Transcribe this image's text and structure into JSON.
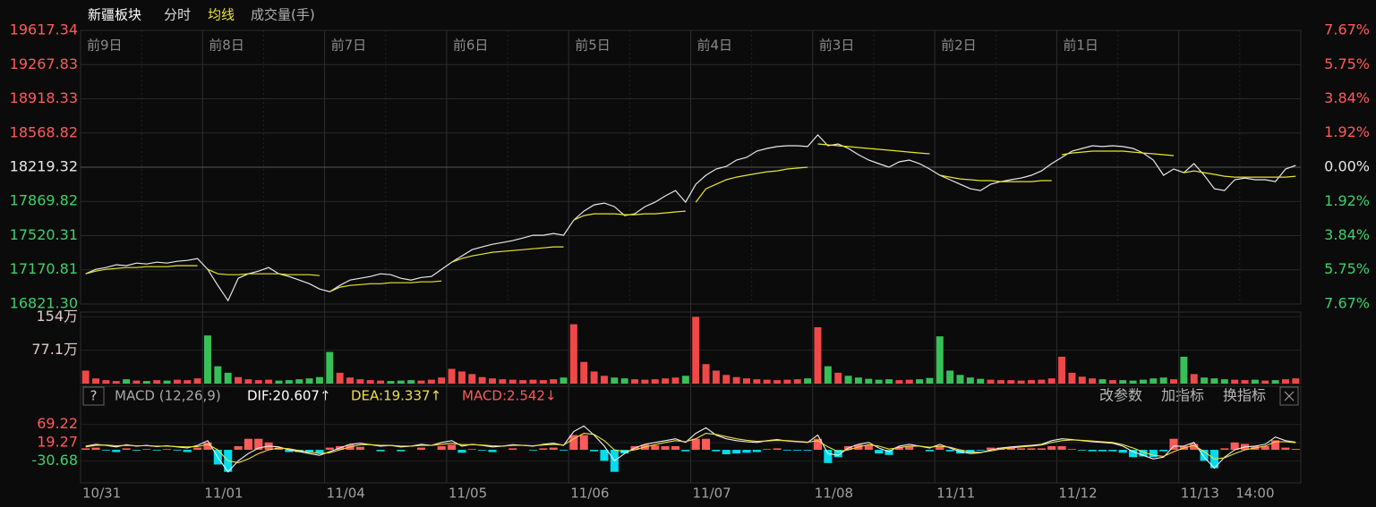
{
  "chart_data": [
    {
      "type": "line",
      "title": "新疆板块",
      "categories": [
        "10/31",
        null,
        null,
        null,
        null,
        null,
        null,
        null,
        null,
        null,
        null,
        null,
        "11/01",
        null,
        null,
        null,
        null,
        null,
        null,
        null,
        null,
        null,
        null,
        null,
        "11/04",
        null,
        null,
        null,
        null,
        null,
        null,
        null,
        null,
        null,
        null,
        null,
        "11/05",
        null,
        null,
        null,
        null,
        null,
        null,
        null,
        null,
        null,
        null,
        null,
        "11/06",
        null,
        null,
        null,
        null,
        null,
        null,
        null,
        null,
        null,
        null,
        null,
        "11/07",
        null,
        null,
        null,
        null,
        null,
        null,
        null,
        null,
        null,
        null,
        null,
        "11/08",
        null,
        null,
        null,
        null,
        null,
        null,
        null,
        null,
        null,
        null,
        null,
        "11/11",
        null,
        null,
        null,
        null,
        null,
        null,
        null,
        null,
        null,
        null,
        null,
        "11/12",
        null,
        null,
        null,
        null,
        null,
        null,
        null,
        null,
        null,
        null,
        null,
        "11/13",
        null,
        null,
        null,
        null,
        null,
        null,
        "14:00",
        null,
        null,
        null,
        null
      ],
      "day_labels": [
        "前9日",
        "前8日",
        "前7日",
        "前6日",
        "前5日",
        "前4日",
        "前3日",
        "前2日",
        "前1日"
      ],
      "series": [
        {
          "name": "分时",
          "color": "#e8e8e8",
          "values": [
            17130,
            17176,
            17194,
            17222,
            17213,
            17240,
            17231,
            17249,
            17240,
            17258,
            17267,
            17286,
            17176,
            17011,
            16856,
            17084,
            17130,
            17158,
            17194,
            17130,
            17103,
            17066,
            17029,
            16975,
            16947,
            17011,
            17066,
            17084,
            17103,
            17130,
            17121,
            17084,
            17066,
            17093,
            17103,
            17176,
            17249,
            17313,
            17377,
            17405,
            17432,
            17450,
            17469,
            17496,
            17524,
            17524,
            17542,
            17524,
            17679,
            17771,
            17835,
            17853,
            17816,
            17725,
            17743,
            17816,
            17862,
            17926,
            17981,
            17862,
            18045,
            18137,
            18201,
            18228,
            18292,
            18320,
            18384,
            18411,
            18430,
            18439,
            18439,
            18430,
            18549,
            18439,
            18457,
            18411,
            18347,
            18292,
            18256,
            18219,
            18274,
            18292,
            18256,
            18201,
            18137,
            18091,
            18045,
            17999,
            17981,
            18045,
            18072,
            18091,
            18109,
            18137,
            18182,
            18256,
            18320,
            18384,
            18411,
            18439,
            18430,
            18439,
            18430,
            18411,
            18365,
            18292,
            18137,
            18201,
            18164,
            18256,
            18137,
            17999,
            17981,
            18091,
            18109,
            18091,
            18091,
            18072,
            18201,
            18238
          ]
        },
        {
          "name": "均线",
          "color": "#e6e62e",
          "values": [
            17130,
            17158,
            17176,
            17185,
            17194,
            17194,
            17203,
            17203,
            17203,
            17213,
            17213,
            17213,
            17176,
            17130,
            17121,
            17121,
            17130,
            17130,
            17130,
            17130,
            17121,
            17121,
            17121,
            17112,
            16947,
            16993,
            17011,
            17020,
            17029,
            17029,
            17039,
            17039,
            17039,
            17048,
            17048,
            17057,
            17249,
            17286,
            17313,
            17331,
            17350,
            17359,
            17368,
            17377,
            17386,
            17395,
            17405,
            17405,
            17679,
            17725,
            17743,
            17743,
            17743,
            17734,
            17734,
            17743,
            17743,
            17752,
            17762,
            17771,
            17862,
            17999,
            18045,
            18091,
            18118,
            18137,
            18155,
            18173,
            18182,
            18201,
            18210,
            18219,
            18457,
            18448,
            18439,
            18430,
            18420,
            18411,
            18402,
            18393,
            18384,
            18374,
            18365,
            18356,
            18137,
            18118,
            18100,
            18091,
            18082,
            18082,
            18072,
            18072,
            18072,
            18072,
            18082,
            18082,
            18347,
            18365,
            18374,
            18384,
            18384,
            18384,
            18384,
            18374,
            18365,
            18356,
            18347,
            18338,
            18164,
            18182,
            18164,
            18146,
            18127,
            18118,
            18118,
            18118,
            18118,
            18118,
            18118,
            18127
          ]
        }
      ],
      "ylim": [
        16821.3,
        19617.34
      ],
      "yticks": [
        19617.34,
        19267.83,
        18918.33,
        18568.82,
        18219.32,
        17869.82,
        17520.31,
        17170.81,
        {
          "value": 16821.3,
          "label": "16821.30"
        }
      ],
      "y2lim": [
        -7.67,
        7.67
      ],
      "y2ticks": [
        {
          "value": 7.67,
          "label": "7.67%"
        },
        {
          "value": 5.75,
          "label": "5.75%"
        },
        {
          "value": 3.84,
          "label": "3.84%"
        },
        {
          "value": 1.92,
          "label": "1.92%"
        },
        {
          "value": 0,
          "label": "0.00%"
        },
        {
          "value": -1.92,
          "label": "1.92%"
        },
        {
          "value": -3.84,
          "label": "3.84%"
        },
        {
          "value": -5.75,
          "label": "5.75%"
        },
        {
          "value": -7.67,
          "label": "7.67%"
        }
      ],
      "grid": true,
      "label_colors": {
        "up": "#ff5a5a",
        "down": "#3dd16a",
        "flat": "#e8e8e8"
      }
    },
    {
      "type": "bar",
      "title": "成交量(手)",
      "values": [
        30,
        12,
        8,
        6,
        10,
        7,
        6,
        8,
        7,
        9,
        8,
        12,
        111,
        40,
        25,
        15,
        10,
        8,
        9,
        7,
        8,
        10,
        12,
        15,
        73,
        25,
        14,
        10,
        8,
        7,
        6,
        7,
        8,
        7,
        9,
        14,
        34,
        28,
        22,
        15,
        12,
        10,
        9,
        8,
        9,
        8,
        10,
        14,
        137,
        50,
        28,
        18,
        14,
        12,
        10,
        9,
        10,
        12,
        14,
        18,
        154,
        45,
        30,
        20,
        15,
        12,
        10,
        9,
        8,
        9,
        10,
        12,
        130,
        40,
        25,
        18,
        14,
        11,
        9,
        10,
        8,
        9,
        10,
        13,
        109,
        30,
        20,
        14,
        11,
        9,
        8,
        8,
        7,
        8,
        9,
        12,
        62,
        25,
        16,
        12,
        10,
        8,
        8,
        7,
        9,
        12,
        14,
        10,
        62,
        22,
        14,
        12,
        10,
        9,
        8,
        9,
        7,
        8,
        10,
        12
      ],
      "ylim": [
        0,
        165
      ],
      "yticks": [
        {
          "value": 154,
          "label": "154万"
        },
        {
          "value": 77.1,
          "label": "77.1万"
        }
      ],
      "colors": {
        "up": "#f04848",
        "down": "#38c058"
      }
    },
    {
      "type": "macd",
      "series": [
        {
          "color": "#f2f2f2",
          "values": [
            10,
            15,
            12,
            8,
            14,
            10,
            12,
            9,
            11,
            8,
            5,
            12,
            25,
            -20,
            -60,
            -30,
            -10,
            5,
            10,
            8,
            0,
            -5,
            -10,
            -15,
            -5,
            5,
            15,
            18,
            14,
            10,
            12,
            8,
            10,
            15,
            12,
            20,
            25,
            10,
            15,
            12,
            8,
            10,
            14,
            12,
            10,
            15,
            18,
            12,
            50,
            65,
            40,
            10,
            -30,
            -10,
            5,
            15,
            20,
            25,
            30,
            20,
            45,
            60,
            40,
            30,
            25,
            22,
            20,
            25,
            28,
            24,
            22,
            20,
            40,
            -10,
            -15,
            5,
            15,
            20,
            5,
            -5,
            10,
            15,
            10,
            5,
            15,
            5,
            -5,
            -10,
            -8,
            0,
            5,
            8,
            10,
            12,
            15,
            25,
            30,
            28,
            25,
            22,
            20,
            18,
            10,
            -5,
            -15,
            -25,
            -20,
            10,
            10,
            20,
            -20,
            -50,
            -20,
            0,
            8,
            10,
            15,
            35,
            25,
            20.607
          ]
        },
        {
          "color": "#f0e040",
          "values": [
            8,
            12,
            13,
            11,
            12,
            11,
            11,
            10,
            10,
            9,
            8,
            9,
            15,
            0,
            -30,
            -35,
            -25,
            -10,
            0,
            5,
            3,
            -2,
            -6,
            -10,
            -8,
            0,
            8,
            14,
            14,
            12,
            12,
            10,
            10,
            12,
            12,
            15,
            18,
            14,
            14,
            13,
            11,
            10,
            12,
            12,
            11,
            13,
            15,
            13,
            30,
            45,
            42,
            25,
            0,
            -5,
            0,
            8,
            14,
            20,
            25,
            22,
            30,
            45,
            42,
            36,
            30,
            26,
            23,
            24,
            26,
            25,
            23,
            21,
            25,
            8,
            -5,
            0,
            8,
            14,
            10,
            2,
            6,
            10,
            10,
            7,
            10,
            7,
            0,
            -6,
            -7,
            -3,
            2,
            5,
            8,
            10,
            13,
            20,
            25,
            27,
            26,
            24,
            22,
            20,
            14,
            5,
            -6,
            -15,
            -18,
            -5,
            5,
            12,
            -5,
            -25,
            -22,
            -10,
            0,
            5,
            10,
            22,
            22,
            19.337
          ]
        },
        {
          "colors": {
            "up": "#ff5a5a",
            "down": "#00dcf0"
          },
          "values": [
            4,
            6,
            -2,
            -6,
            4,
            -2,
            2,
            -2,
            2,
            -2,
            -6,
            6,
            20,
            -40,
            -60,
            10,
            30,
            30,
            20,
            6,
            -6,
            -6,
            -8,
            -10,
            6,
            10,
            14,
            8,
            0,
            -4,
            0,
            -4,
            0,
            6,
            0,
            10,
            14,
            -8,
            2,
            -2,
            -6,
            0,
            4,
            0,
            -2,
            4,
            6,
            -2,
            40,
            40,
            -4,
            -30,
            -60,
            -10,
            10,
            14,
            12,
            10,
            10,
            -4,
            30,
            30,
            -4,
            -12,
            -10,
            -8,
            -6,
            2,
            4,
            -2,
            -2,
            -2,
            30,
            -36,
            -20,
            10,
            14,
            12,
            -10,
            -14,
            8,
            10,
            0,
            -4,
            10,
            -4,
            -10,
            -8,
            -2,
            6,
            6,
            6,
            4,
            4,
            4,
            10,
            10,
            2,
            -2,
            -4,
            -4,
            -4,
            -8,
            -20,
            -18,
            -20,
            -4,
            30,
            10,
            16,
            -30,
            -50,
            4,
            20,
            16,
            10,
            10,
            26,
            6,
            2.542
          ]
        }
      ],
      "ylim": [
        -90,
        100
      ],
      "yticks": [
        69.22,
        19.27,
        -30.68
      ],
      "label_colors": {
        "up": "#ff5a5a",
        "down": "#3dd16a"
      }
    }
  ],
  "indicator": {
    "help": "?",
    "name": "MACD (12,26,9)",
    "dif": "DIF:20.607↑",
    "dea": "DEA:19.337↑",
    "macd": "MACD:2.542↓",
    "buttons": [
      "改参数",
      "加指标",
      "换指标"
    ]
  }
}
